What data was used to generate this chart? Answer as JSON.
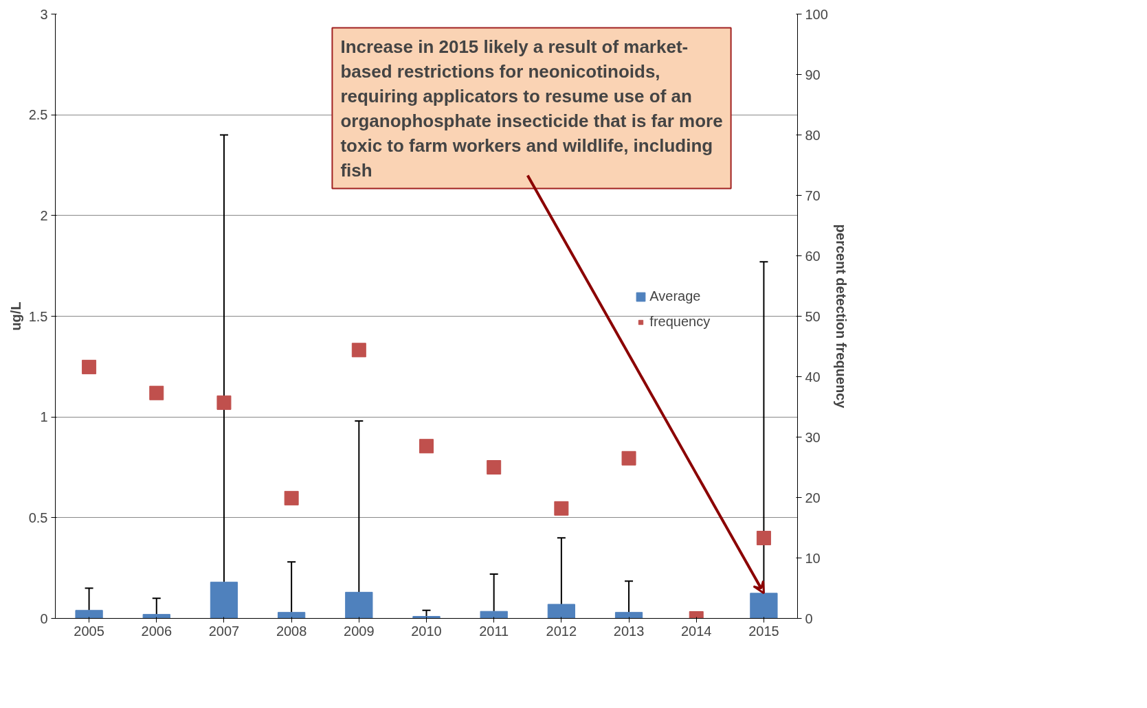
{
  "chart_data": {
    "type": "bar",
    "categories": [
      "2005",
      "2006",
      "2007",
      "2008",
      "2009",
      "2010",
      "2011",
      "2012",
      "2013",
      "2014",
      "2015"
    ],
    "series": [
      {
        "name": "Average",
        "color": "#4f81bd",
        "values": [
          0.04,
          0.02,
          0.18,
          0.03,
          0.13,
          0.01,
          0.035,
          0.07,
          0.03,
          null,
          0.125
        ],
        "errors": [
          [
            0.04,
            0.15
          ],
          [
            0.02,
            0.1
          ],
          [
            0.18,
            2.4
          ],
          [
            0.03,
            0.28
          ],
          [
            0.13,
            0.98
          ],
          [
            0.01,
            0.04
          ],
          [
            0.035,
            0.22
          ],
          [
            0.07,
            0.4
          ],
          [
            0.03,
            0.185
          ],
          null,
          [
            0.125,
            1.77
          ]
        ]
      },
      {
        "name": "frequency",
        "type": "scatter",
        "axis": "y2",
        "marker": "square",
        "color": "#c0504d",
        "values": [
          41.6,
          37.3,
          35.7,
          19.9,
          44.4,
          28.5,
          25,
          18.2,
          26.5,
          0,
          13.3
        ]
      }
    ],
    "ylabel": "ug/L",
    "y2label": "percent detection frequency",
    "ylim": [
      0,
      3
    ],
    "yticks": [
      0,
      0.5,
      1,
      1.5,
      2,
      2.5,
      3
    ],
    "y2lim": [
      0,
      100
    ],
    "y2ticks": [
      0,
      10,
      20,
      30,
      40,
      50,
      60,
      70,
      80,
      90,
      100
    ],
    "grid": "y",
    "legend": "right",
    "annotations": [
      {
        "text": "Increase in 2015 likely a result of market-based restrictions for neonicotinoids, requiring applicators to resume use of an organophosphate insecticide that is far more toxic to farm workers and wildlife, including fish",
        "x": "2015",
        "y": 0.125
      }
    ]
  }
}
